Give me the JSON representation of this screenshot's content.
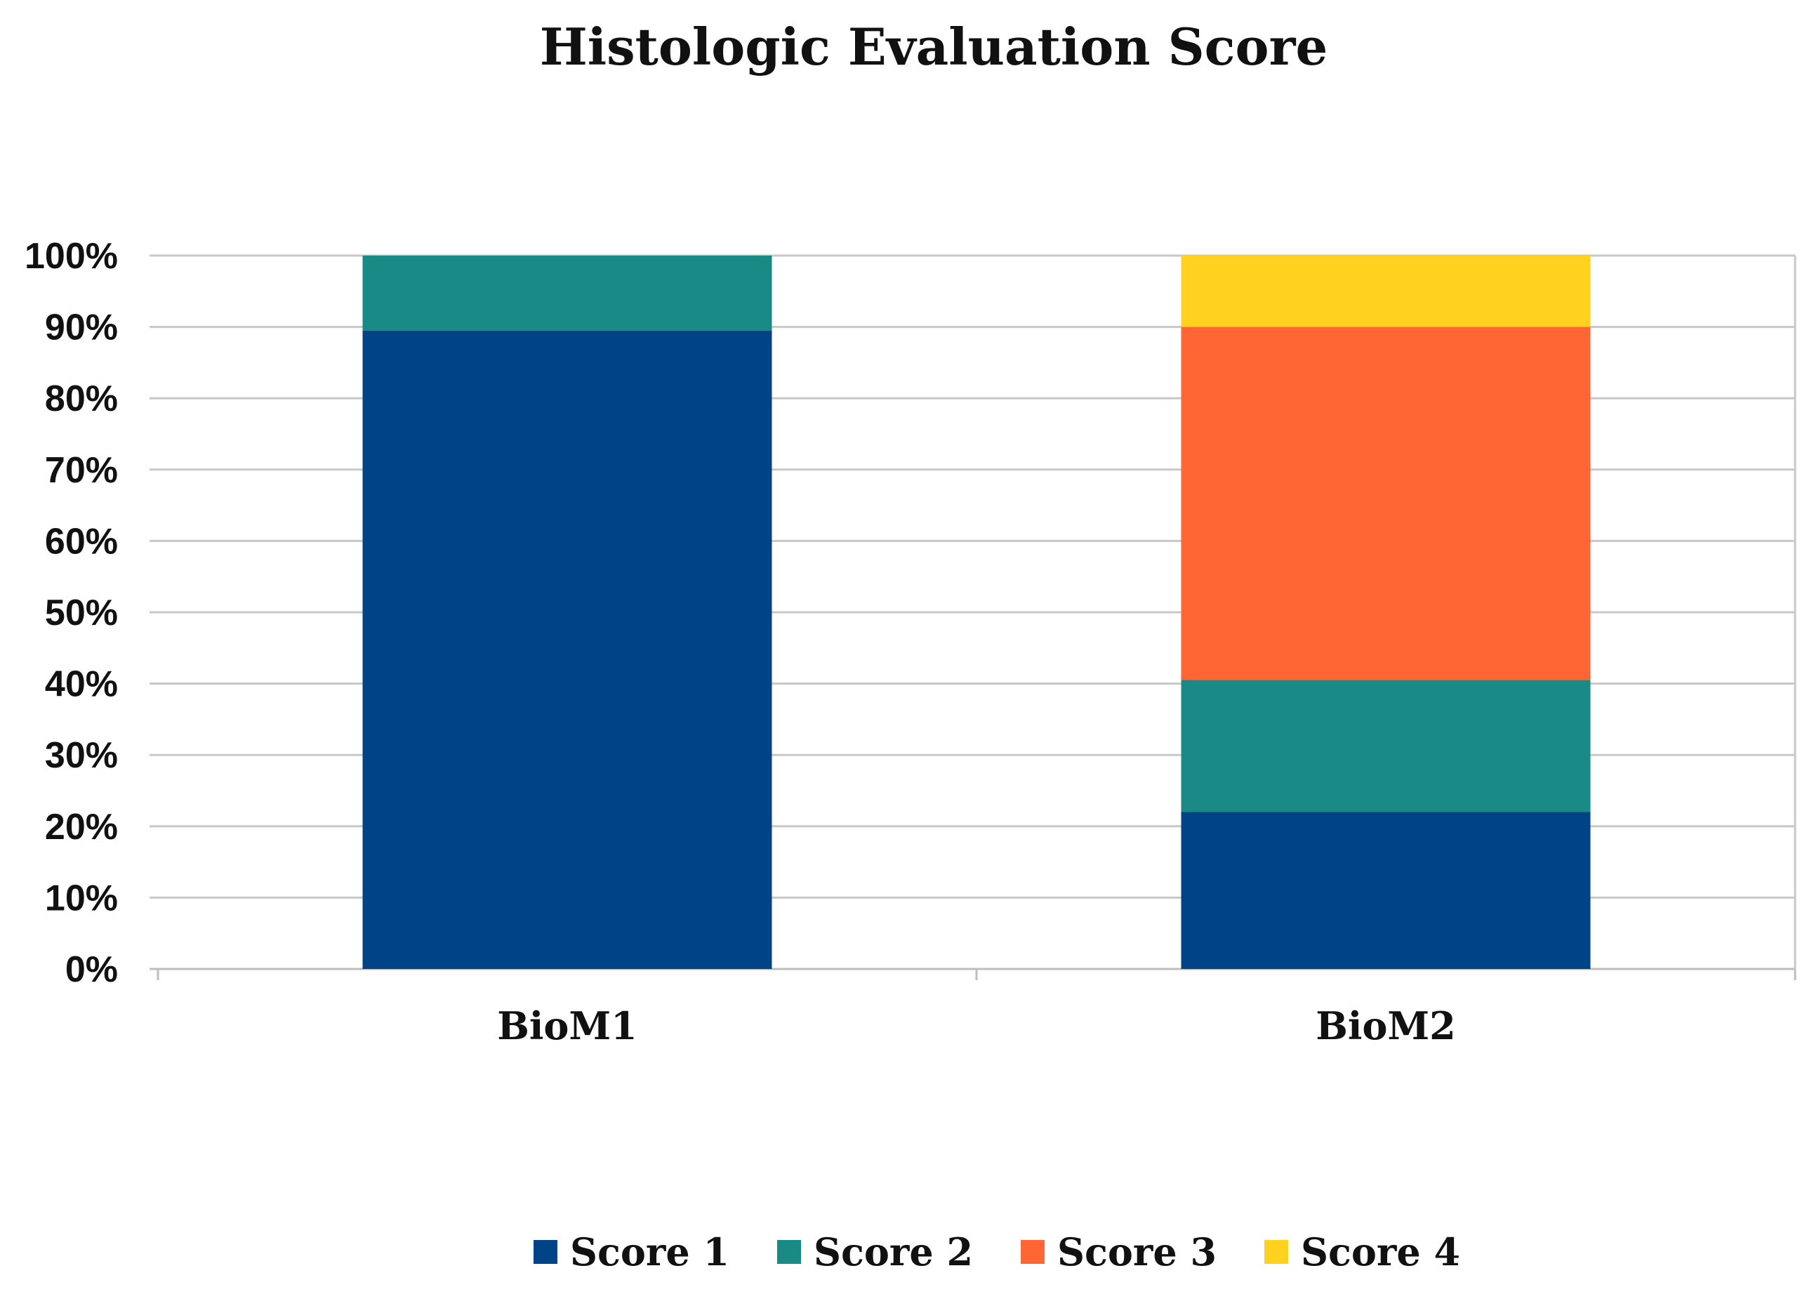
{
  "chart_data": {
    "type": "bar",
    "stacked": true,
    "normalized": true,
    "title": "Histologic Evaluation Score",
    "xlabel": "",
    "ylabel": "",
    "categories": [
      "BioM1",
      "BioM2"
    ],
    "series": [
      {
        "name": "Score 1",
        "color": "#004386",
        "values": [
          89.5,
          22
        ]
      },
      {
        "name": "Score 2",
        "color": "#1a8a86",
        "values": [
          10.5,
          18.5
        ]
      },
      {
        "name": "Score 3",
        "color": "#ff6633",
        "values": [
          0,
          49.5
        ]
      },
      {
        "name": "Score 4",
        "color": "#ffd21f",
        "values": [
          0,
          10
        ]
      }
    ],
    "ylim": [
      0,
      100
    ],
    "yticks": [
      "0%",
      "10%",
      "20%",
      "30%",
      "40%",
      "50%",
      "60%",
      "70%",
      "80%",
      "90%",
      "100%"
    ],
    "grid": true,
    "legend": "bottom"
  }
}
